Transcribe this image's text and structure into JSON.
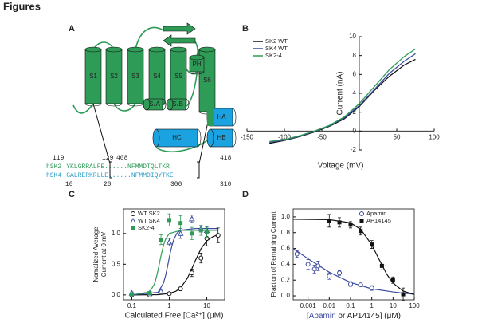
{
  "heading": "Figures",
  "panel_labels": [
    "A",
    "B",
    "C",
    "D"
  ],
  "diagram": {
    "segments": [
      "S1",
      "S2",
      "S3",
      "S4",
      "S5",
      "S6"
    ],
    "ph": "PH",
    "small_helices": [
      "S₄A",
      "S₄B"
    ],
    "calmodulin_helices": [
      "HA",
      "HB",
      "HC"
    ],
    "top_numbers": [
      119,
      129,
      408,
      418
    ],
    "sequences": [
      {
        "name": "hSK2",
        "seq": "YKLGRRALFE......NFMMDTQLTKR",
        "color": "#2e9b57"
      },
      {
        "name": "hSK4",
        "seq": "GALRERKRLLE......NFMMDIQYTKE",
        "color": "#2aa0c8"
      }
    ],
    "bottom_numbers": [
      10,
      20,
      300,
      310
    ]
  },
  "chart_data": [
    {
      "type": "line",
      "axes": "cross",
      "xlabel": "Voltage (mV)",
      "ylabel": "Current (nA)",
      "x": [
        -120,
        -100,
        -80,
        -60,
        -40,
        -20,
        0,
        20,
        40,
        60,
        75
      ],
      "series": [
        {
          "name": "SK2 WT",
          "color": "#111111",
          "values": [
            -1.3,
            -1.0,
            -0.6,
            -0.1,
            0.5,
            1.3,
            2.6,
            4.3,
            5.8,
            7.0,
            7.6
          ]
        },
        {
          "name": "SK4 WT",
          "color": "#3b4ba0",
          "values": [
            -1.2,
            -0.95,
            -0.55,
            -0.05,
            0.55,
            1.4,
            2.7,
            4.4,
            6.1,
            7.4,
            8.2
          ]
        },
        {
          "name": "SK2-4",
          "color": "#2e9b57",
          "values": [
            -1.1,
            -0.9,
            -0.5,
            0.0,
            0.6,
            1.5,
            2.9,
            4.7,
            6.5,
            7.9,
            8.7
          ]
        }
      ],
      "xlim": [
        -150,
        100
      ],
      "xticks": [
        -150,
        -100,
        -50,
        50,
        100
      ],
      "ylim": [
        -2,
        10
      ],
      "yticks": [
        -2,
        0,
        2,
        4,
        6,
        8,
        10
      ],
      "legend": "upper left"
    },
    {
      "type": "scatter",
      "axes": "box",
      "xlog": true,
      "xlabel": "Calculated Free [Ca²⁺] (μM)",
      "ylabel": [
        "Nomalized Average",
        "Current at 0 mV"
      ],
      "series": [
        {
          "name": "WT SK2",
          "color": "#111111",
          "marker": "circle-open",
          "x": [
            0.1,
            0.3,
            1,
            2,
            4,
            7,
            10,
            20
          ],
          "values": [
            0,
            0,
            0.02,
            0.1,
            0.36,
            0.6,
            0.92,
            0.97
          ],
          "errors": [
            0.01,
            0.01,
            0.02,
            0.03,
            0.06,
            0.08,
            0.12,
            0.12
          ]
        },
        {
          "name": "WT SK4",
          "color": "#3b4ba0",
          "marker": "triangle-open",
          "x": [
            0.1,
            0.3,
            0.6,
            1,
            2,
            4,
            7,
            10
          ],
          "values": [
            0.03,
            0.03,
            0.06,
            0.86,
            1.0,
            1.24,
            1.08,
            1.05
          ],
          "errors": [
            0.02,
            0.02,
            0.03,
            0.06,
            0.08,
            0.06,
            0.05,
            0.06
          ]
        },
        {
          "name": "SK2-4",
          "color": "#2e9b57",
          "marker": "square",
          "x": [
            0.1,
            0.3,
            0.6,
            1,
            2,
            4,
            7,
            10
          ],
          "values": [
            0.01,
            0.03,
            0.9,
            1.22,
            1.17,
            1.0,
            1.05,
            1.02
          ],
          "errors": [
            0.01,
            0.02,
            0.08,
            0.1,
            0.12,
            0.1,
            0.08,
            0.08
          ]
        }
      ],
      "fits": [
        {
          "color": "#111111",
          "x": [
            0.1,
            0.5,
            1,
            1.5,
            2,
            3,
            4,
            5,
            7,
            10,
            15,
            20
          ],
          "values": [
            0,
            0.004,
            0.023,
            0.06,
            0.116,
            0.266,
            0.427,
            0.565,
            0.751,
            0.88,
            0.953,
            0.977
          ]
        },
        {
          "color": "#3b4ba0",
          "x": [
            0.1,
            0.5,
            0.7,
            0.8,
            0.9,
            1,
            1.1,
            1.3,
            1.6,
            2,
            5,
            20
          ],
          "values": [
            0,
            0.042,
            0.193,
            0.321,
            0.467,
            0.608,
            0.73,
            0.894,
            1.006,
            1.054,
            1.08,
            1.08
          ]
        },
        {
          "color": "#2e9b57",
          "x": [
            0.1,
            0.3,
            0.4,
            0.45,
            0.5,
            0.55,
            0.6,
            0.7,
            0.8,
            1,
            2,
            20
          ],
          "values": [
            0,
            0.048,
            0.177,
            0.281,
            0.402,
            0.525,
            0.637,
            0.808,
            0.91,
            1.0,
            1.05,
            1.05
          ]
        }
      ],
      "xlim": [
        0.06,
        30
      ],
      "xticks": [
        0.1,
        1,
        10
      ],
      "ylim": [
        -0.08,
        1.4
      ],
      "yticks": [
        {
          "value": 0,
          "label": "0.0"
        },
        0.5,
        {
          "value": 1,
          "label": "1.0"
        }
      ],
      "legend": "upper left"
    },
    {
      "type": "scatter",
      "axes": "box",
      "xlog": true,
      "xlabel_parts": [
        "[Apamin",
        " or AP14145] (μM)"
      ],
      "xlabel_colors": [
        "#3b4ba0",
        "#222222"
      ],
      "ylabel": [
        "Fraction of Remaining Current"
      ],
      "series": [
        {
          "name": "Apamin",
          "color": "#3b4ba0",
          "marker": "circle-open",
          "x": [
            0.0003,
            0.001,
            0.002,
            0.003,
            0.01,
            0.03,
            0.1,
            0.3,
            1
          ],
          "values": [
            0.53,
            0.4,
            0.34,
            0.38,
            0.25,
            0.29,
            0.15,
            0.14,
            0.1
          ],
          "errors": [
            0.04,
            0.06,
            0.05,
            0.06,
            0.04,
            0.03,
            0.03,
            0.02,
            0.03
          ]
        },
        {
          "name": "AP14145",
          "color": "#111111",
          "marker": "square",
          "x": [
            0.01,
            0.03,
            0.1,
            0.3,
            1,
            3,
            10,
            30
          ],
          "values": [
            0.95,
            0.93,
            0.9,
            0.82,
            0.65,
            0.38,
            0.2,
            0.02
          ],
          "errors": [
            0.08,
            0.06,
            0.04,
            0.05,
            0.05,
            0.05,
            0.04,
            0.08
          ]
        }
      ],
      "fits": [
        {
          "color": "#3b4ba0",
          "x": [
            0.0002,
            0.001,
            0.01,
            0.1,
            1,
            10,
            100
          ],
          "values": [
            0.6,
            0.47,
            0.3,
            0.17,
            0.09,
            0.05,
            0.02
          ]
        },
        {
          "color": "#111111",
          "x": [
            0.0002,
            0.01,
            0.1,
            0.3,
            1,
            2,
            5,
            10,
            30,
            100
          ],
          "values": [
            0.97,
            0.965,
            0.924,
            0.843,
            0.647,
            0.485,
            0.277,
            0.162,
            0.061,
            0.019
          ]
        }
      ],
      "xlim": [
        0.0002,
        100
      ],
      "xticks": [
        0.001,
        0.01,
        0.1,
        1,
        10,
        100
      ],
      "ylim": [
        -0.05,
        1.1
      ],
      "yticks": [
        {
          "value": 0,
          "label": "0.0"
        },
        0.2,
        0.4,
        0.6,
        0.8,
        {
          "value": 1,
          "label": "1.0"
        }
      ],
      "legend": "upper right"
    }
  ]
}
